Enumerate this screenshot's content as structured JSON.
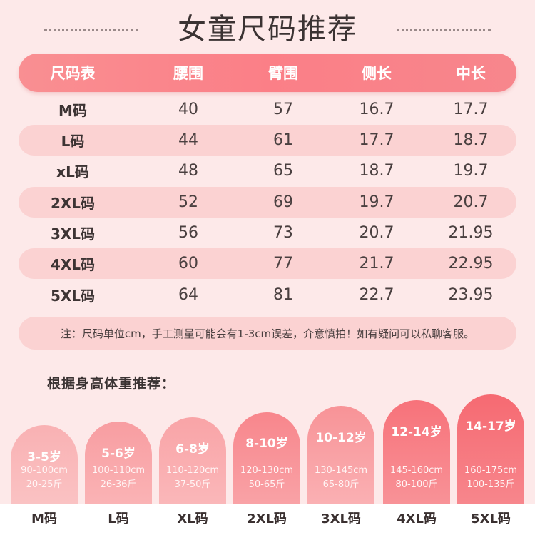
{
  "title": "女童尺码推荐",
  "table": {
    "headers": [
      "尺码表",
      "腰围",
      "臂围",
      "侧长",
      "中长"
    ],
    "rows": [
      [
        "M码",
        "40",
        "57",
        "16.7",
        "17.7"
      ],
      [
        "L码",
        "44",
        "61",
        "17.7",
        "18.7"
      ],
      [
        "xL码",
        "48",
        "65",
        "18.7",
        "19.7"
      ],
      [
        "2XL码",
        "52",
        "69",
        "19.7",
        "20.7"
      ],
      [
        "3XL码",
        "56",
        "73",
        "20.7",
        "21.95"
      ],
      [
        "4XL码",
        "60",
        "77",
        "21.7",
        "22.95"
      ],
      [
        "5XL码",
        "64",
        "81",
        "22.7",
        "23.95"
      ]
    ]
  },
  "note": "注：尺码单位cm，手工测量可能会有1-3cm误差，介意慎拍！如有疑问可以私聊客服。",
  "recommend": {
    "title": "根据身高体重推荐：",
    "items": [
      {
        "age": "3-5岁",
        "height": "90-100cm",
        "weight": "20-25斤",
        "size": "M码"
      },
      {
        "age": "5-6岁",
        "height": "100-110cm",
        "weight": "26-36斤",
        "size": "L码"
      },
      {
        "age": "6-8岁",
        "height": "110-120cm",
        "weight": "37-50斤",
        "size": "XL码"
      },
      {
        "age": "8-10岁",
        "height": "120-130cm",
        "weight": "50-65斤",
        "size": "2XL码"
      },
      {
        "age": "10-12岁",
        "height": "130-145cm",
        "weight": "65-80斤",
        "size": "3XL码"
      },
      {
        "age": "12-14岁",
        "height": "145-160cm",
        "weight": "80-100斤",
        "size": "4XL码"
      },
      {
        "age": "14-17岁",
        "height": "160-175cm",
        "weight": "100-135斤",
        "size": "5XL码"
      }
    ]
  },
  "colors": {
    "background": "#fde9e9",
    "header": "#fb7f87",
    "row_shade": "#fbd2d2",
    "arch_light": "#f9b1b3",
    "arch_dark": "#f7676f"
  }
}
